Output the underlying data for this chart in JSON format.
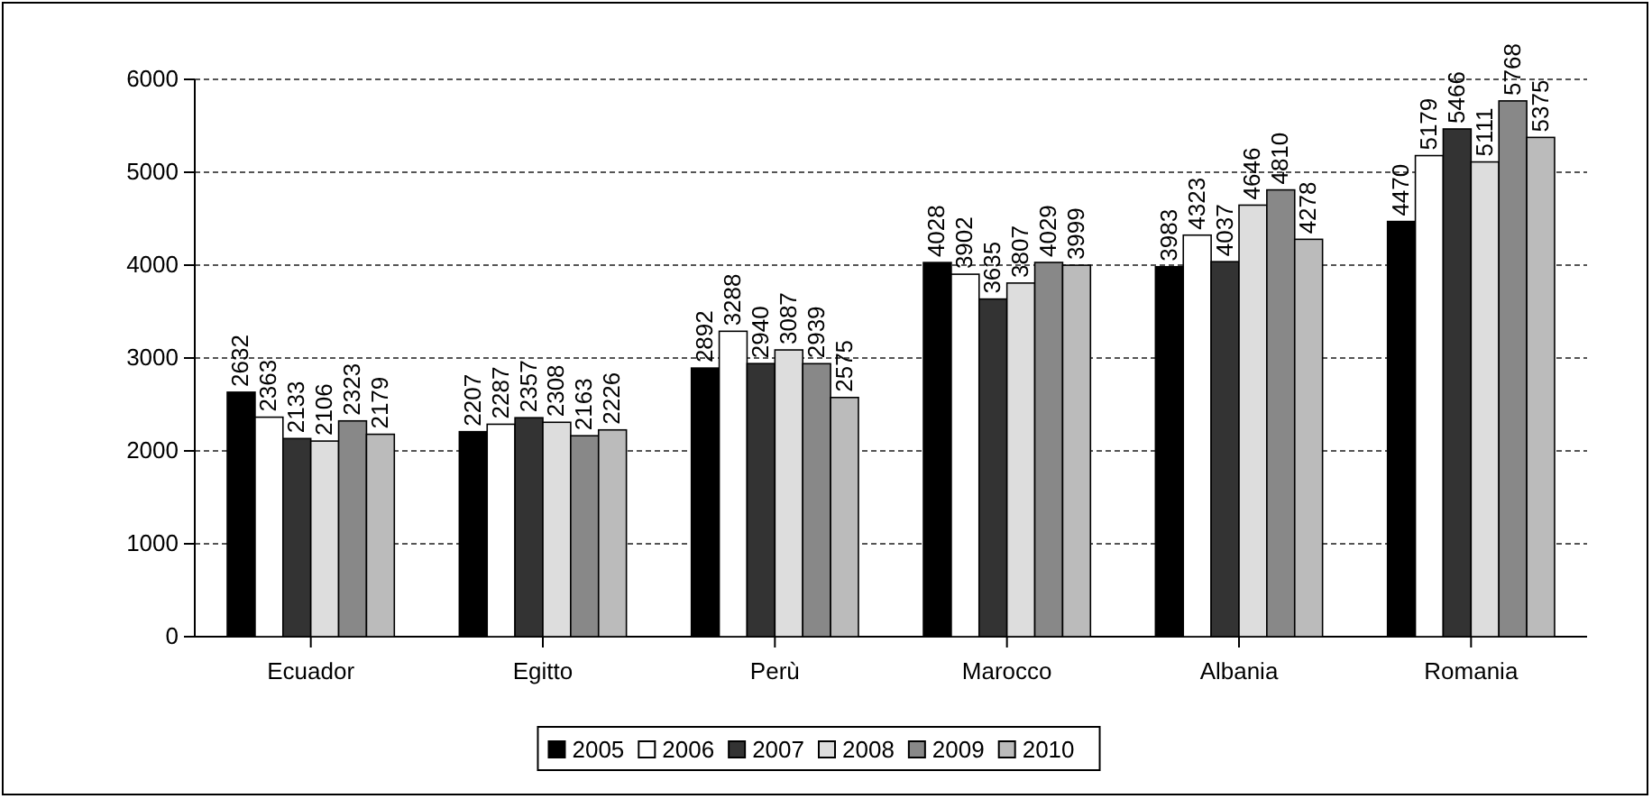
{
  "chart_data": {
    "type": "bar",
    "categories": [
      "Ecuador",
      "Egitto",
      "Perù",
      "Marocco",
      "Albania",
      "Romania"
    ],
    "series": [
      {
        "name": "2005",
        "color": "#000000",
        "values": [
          2632,
          2207,
          2892,
          4028,
          3983,
          4470
        ]
      },
      {
        "name": "2006",
        "color": "#ffffff",
        "values": [
          2363,
          2287,
          3288,
          3902,
          4323,
          5179
        ]
      },
      {
        "name": "2007",
        "color": "#333333",
        "values": [
          2133,
          2357,
          2940,
          3635,
          4037,
          5466
        ]
      },
      {
        "name": "2008",
        "color": "#dddddd",
        "values": [
          2106,
          2308,
          3087,
          3807,
          4646,
          5111
        ]
      },
      {
        "name": "2009",
        "color": "#888888",
        "values": [
          2323,
          2163,
          2939,
          4029,
          4810,
          5768
        ]
      },
      {
        "name": "2010",
        "color": "#bbbbbb",
        "values": [
          2179,
          2226,
          2575,
          3999,
          4278,
          5375
        ]
      }
    ],
    "ylim": [
      0,
      6000
    ],
    "yticks": [
      0,
      1000,
      2000,
      3000,
      4000,
      5000,
      6000
    ],
    "grid": "y",
    "legend": "bottom",
    "data_labels": true
  }
}
